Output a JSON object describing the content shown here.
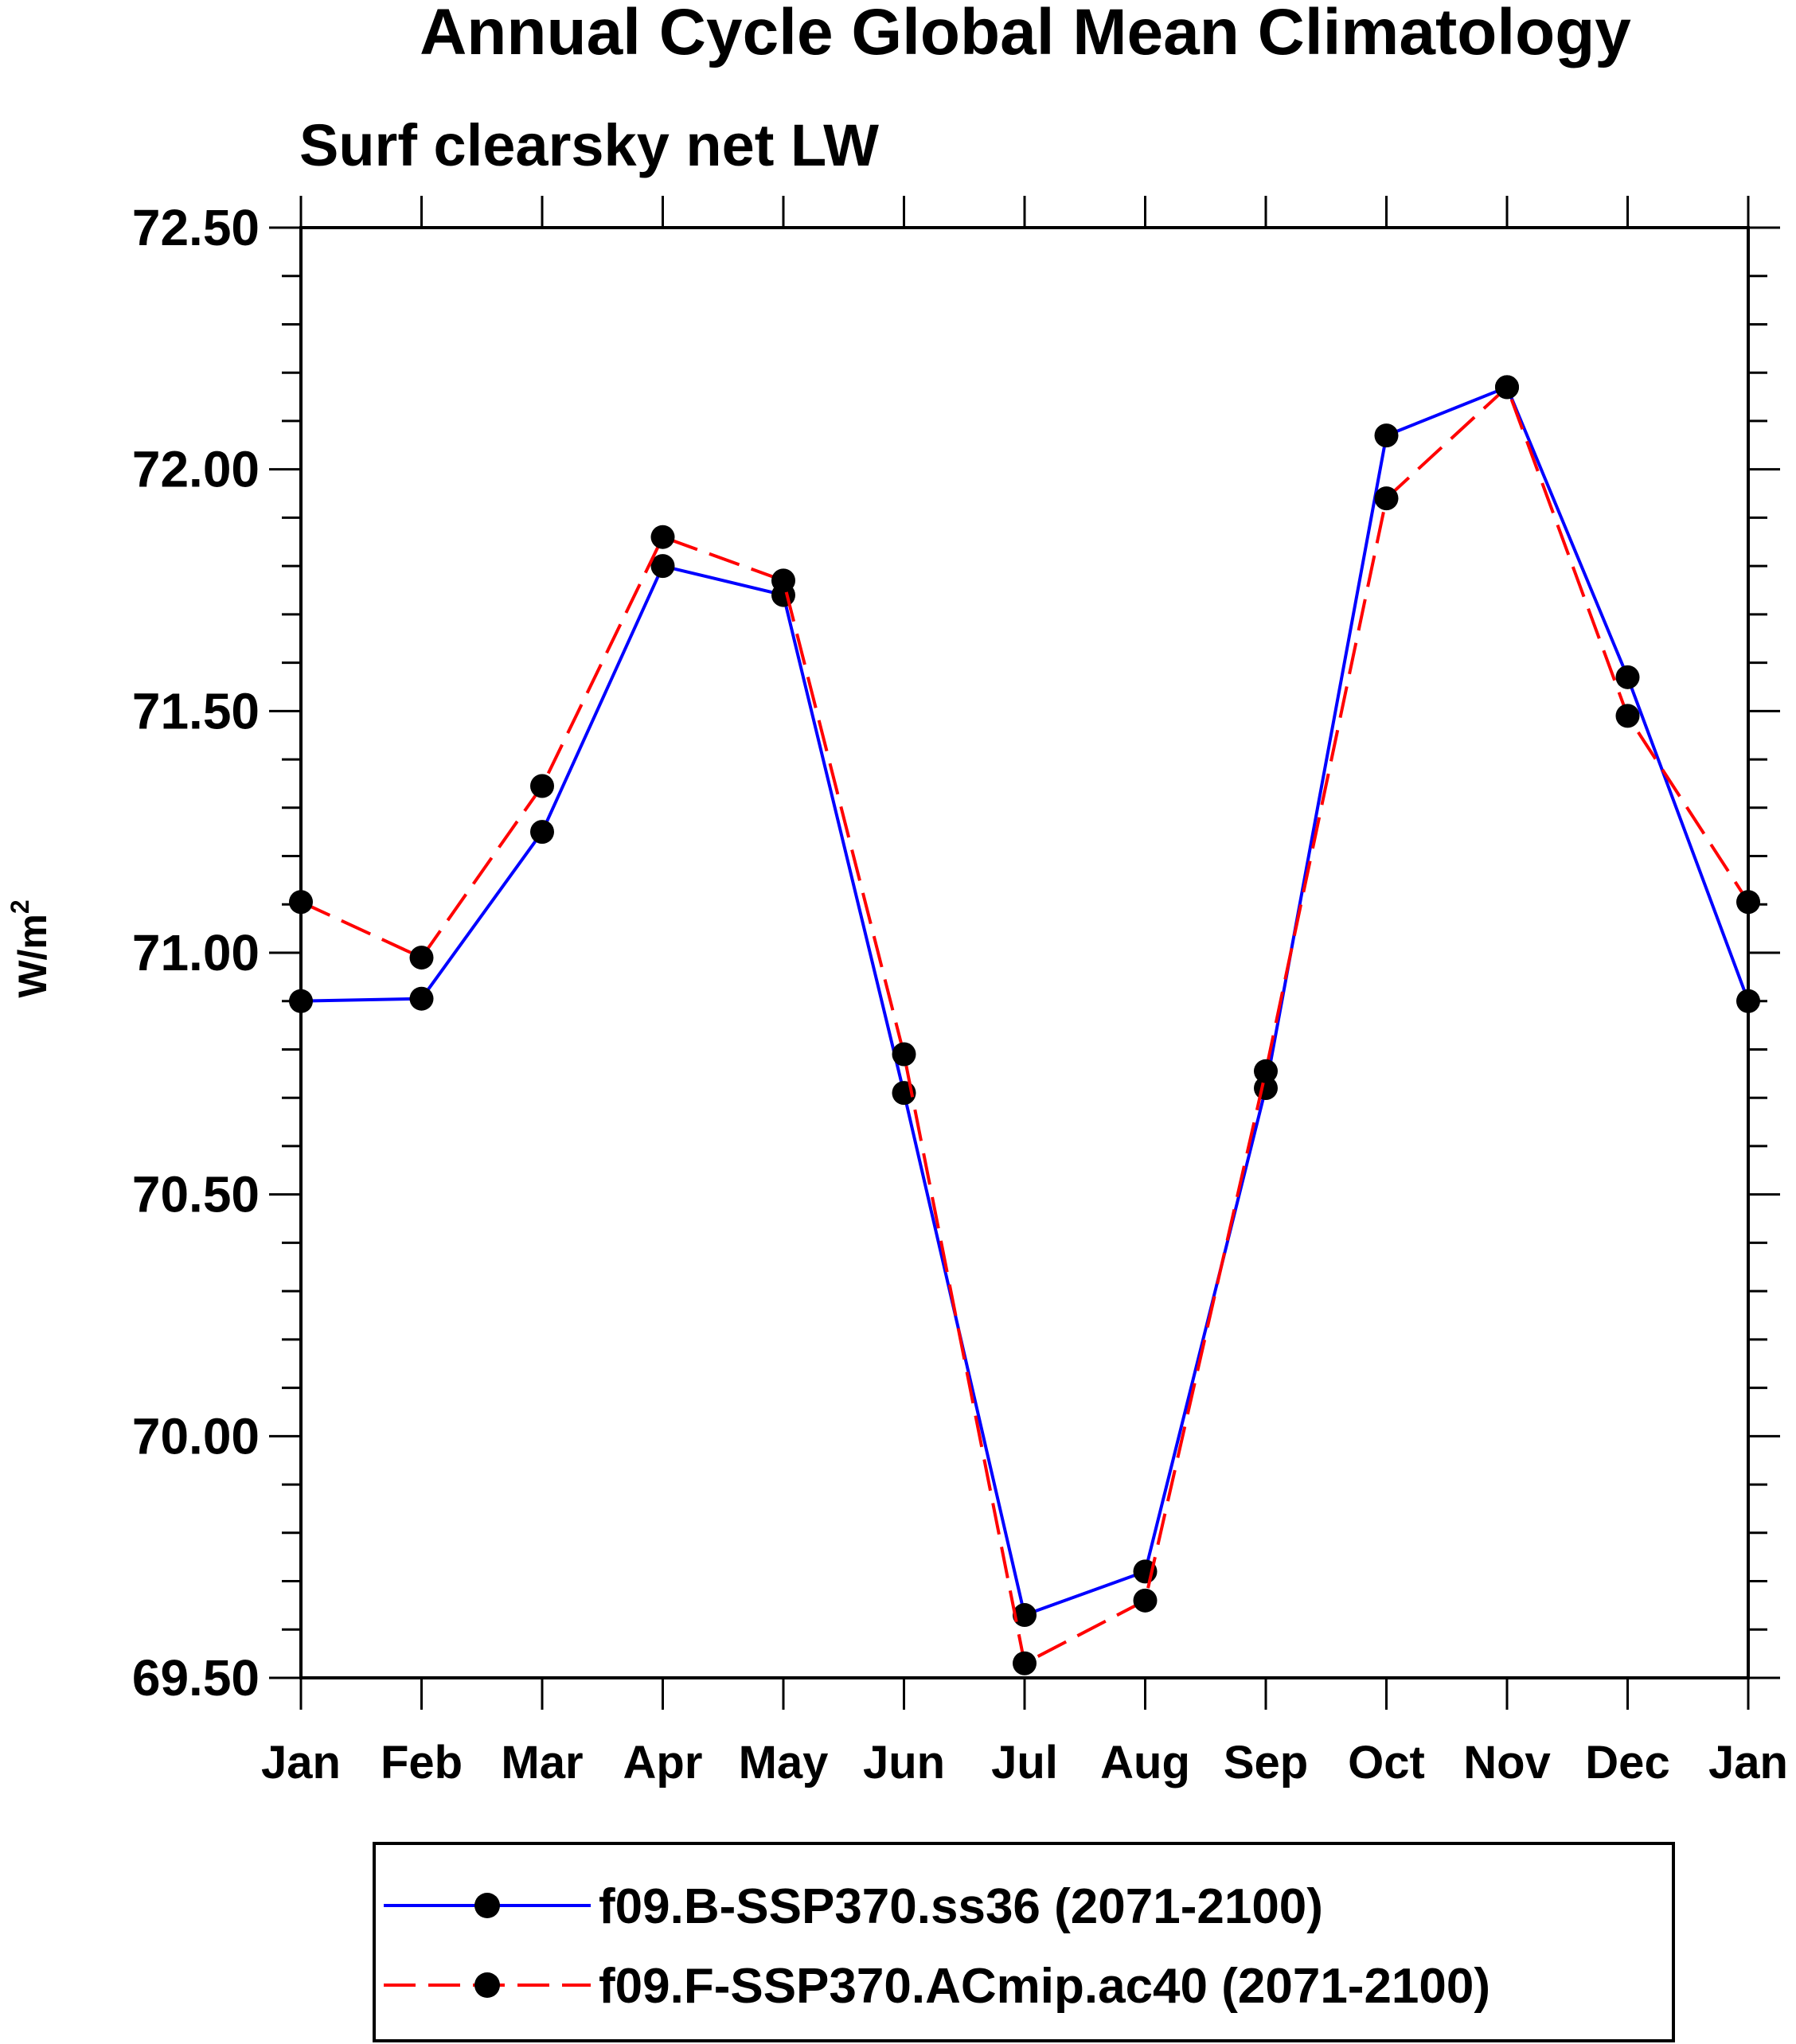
{
  "chart_data": {
    "type": "line",
    "title": "Annual Cycle Global Mean Climatology",
    "subtitle": "Surf clearsky net LW",
    "ylabel": "W/m",
    "ylabel_superscript": "2",
    "xlabel": "",
    "categories": [
      "Jan",
      "Feb",
      "Mar",
      "Apr",
      "May",
      "Jun",
      "Jul",
      "Aug",
      "Sep",
      "Oct",
      "Nov",
      "Dec",
      "Jan"
    ],
    "ylim": [
      69.5,
      72.5
    ],
    "yticks": [
      "69.50",
      "70.00",
      "70.50",
      "71.00",
      "71.50",
      "72.00",
      "72.50"
    ],
    "series": [
      {
        "name": "f09.B-SSP370.ss36 (2071-2100)",
        "color": "#0000ff",
        "style": "solid",
        "marker": "filled-circle",
        "values": [
          70.9,
          70.905,
          71.25,
          71.8,
          71.74,
          70.71,
          69.63,
          69.72,
          70.72,
          72.07,
          72.17,
          71.57,
          70.9
        ]
      },
      {
        "name": "f09.F-SSP370.ACmip.ac40 (2071-2100)",
        "color": "#ff0000",
        "style": "dashed",
        "marker": "filled-circle",
        "values": [
          71.105,
          70.99,
          71.345,
          71.86,
          71.77,
          70.79,
          69.53,
          69.66,
          70.755,
          71.94,
          72.17,
          71.49,
          71.105
        ]
      }
    ],
    "legend_position": "bottom"
  }
}
